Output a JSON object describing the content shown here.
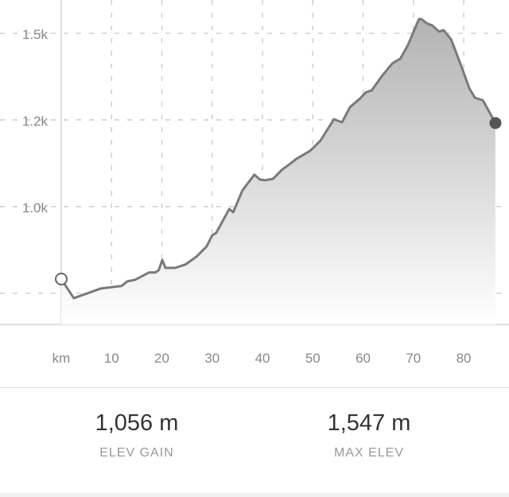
{
  "chart_data": {
    "type": "area",
    "xlabel": "km",
    "xlim": [
      0,
      89
    ],
    "ylim": [
      660,
      1596
    ],
    "grid": true,
    "x_ticks": [
      10,
      20,
      30,
      40,
      50,
      60,
      70,
      80
    ],
    "x_tick_labels": [
      "10",
      "20",
      "30",
      "40",
      "50",
      "60",
      "70",
      "80"
    ],
    "y_ticks": [
      750,
      1000,
      1250,
      1500
    ],
    "y_tick_labels": [
      "",
      "1.0k",
      "1.2k",
      "1.5k"
    ],
    "colors": {
      "line": "#7a7a7a",
      "fill_top": "#b3b3b3",
      "fill_bottom": "#ffffff",
      "end_marker": "#555555"
    },
    "x": [
      0,
      2.5,
      7.9,
      12.0,
      13.1,
      14.7,
      17.5,
      18.7,
      19.4,
      20.1,
      20.7,
      22.6,
      24.7,
      26.9,
      28.9,
      30.0,
      30.8,
      33.4,
      34.2,
      36.0,
      36.8,
      38.4,
      39.5,
      40.5,
      42.1,
      44.0,
      44.7,
      46.8,
      49.5,
      51.5,
      54.2,
      55.8,
      57.4,
      59.4,
      60.6,
      61.7,
      63.7,
      65.8,
      67.4,
      68.9,
      71.1,
      71.6,
      72.7,
      73.7,
      75.1,
      76.0,
      77.5,
      79.5,
      81.1,
      82.2,
      83.8,
      86.3
    ],
    "y": [
      791,
      736,
      764,
      771,
      784,
      789,
      810,
      810,
      817,
      846,
      823,
      823,
      833,
      856,
      885,
      917,
      924,
      993,
      984,
      1046,
      1062,
      1092,
      1078,
      1076,
      1080,
      1108,
      1115,
      1138,
      1161,
      1190,
      1252,
      1243,
      1287,
      1312,
      1330,
      1335,
      1376,
      1413,
      1427,
      1466,
      1541,
      1541,
      1528,
      1523,
      1505,
      1509,
      1482,
      1406,
      1342,
      1314,
      1307,
      1241
    ]
  },
  "stats": [
    {
      "value": "1,056 m",
      "label": "ELEV GAIN"
    },
    {
      "value": "1,547 m",
      "label": "MAX ELEV"
    }
  ]
}
